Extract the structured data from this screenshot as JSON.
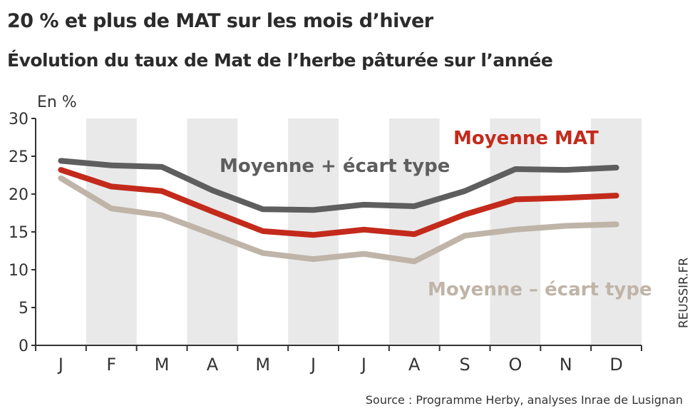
{
  "title": "20 % et plus de MAT sur les mois d’hiver",
  "subtitle": "Évolution du taux de Mat de l’herbe pâturée sur l’année",
  "source": "Source : Programme Herby, analyses Inrae de Lusignan",
  "credit": "REUSSIR.FR",
  "colors": {
    "moyenne": "#c32a1b",
    "plus": "#5e5e5e",
    "minus": "#bfb4a7",
    "band": "#e9e9e9"
  },
  "chart_data": {
    "type": "line",
    "ylabel": "En %",
    "ylim": [
      0,
      30
    ],
    "yticks": [
      0,
      5,
      10,
      15,
      20,
      25,
      30
    ],
    "categories": [
      "J",
      "F",
      "M",
      "A",
      "M",
      "J",
      "J",
      "A",
      "S",
      "O",
      "N",
      "D"
    ],
    "grid": "alternating vertical bands",
    "series": [
      {
        "name": "Moyenne + écart type",
        "key": "plus",
        "values": [
          24.4,
          23.8,
          23.6,
          20.5,
          18,
          17.9,
          18.6,
          18.4,
          20.4,
          23.3,
          23.2,
          23.5
        ]
      },
      {
        "name": "Moyenne MAT",
        "key": "moyenne",
        "values": [
          23.2,
          21,
          20.4,
          17.7,
          15.1,
          14.6,
          15.3,
          14.7,
          17.3,
          19.3,
          19.5,
          19.8
        ]
      },
      {
        "name": "Moyenne – écart type",
        "key": "minus",
        "values": [
          22.1,
          18.1,
          17.2,
          14.7,
          12.2,
          11.4,
          12.1,
          11.1,
          14.5,
          15.3,
          15.8,
          16
        ]
      }
    ]
  }
}
